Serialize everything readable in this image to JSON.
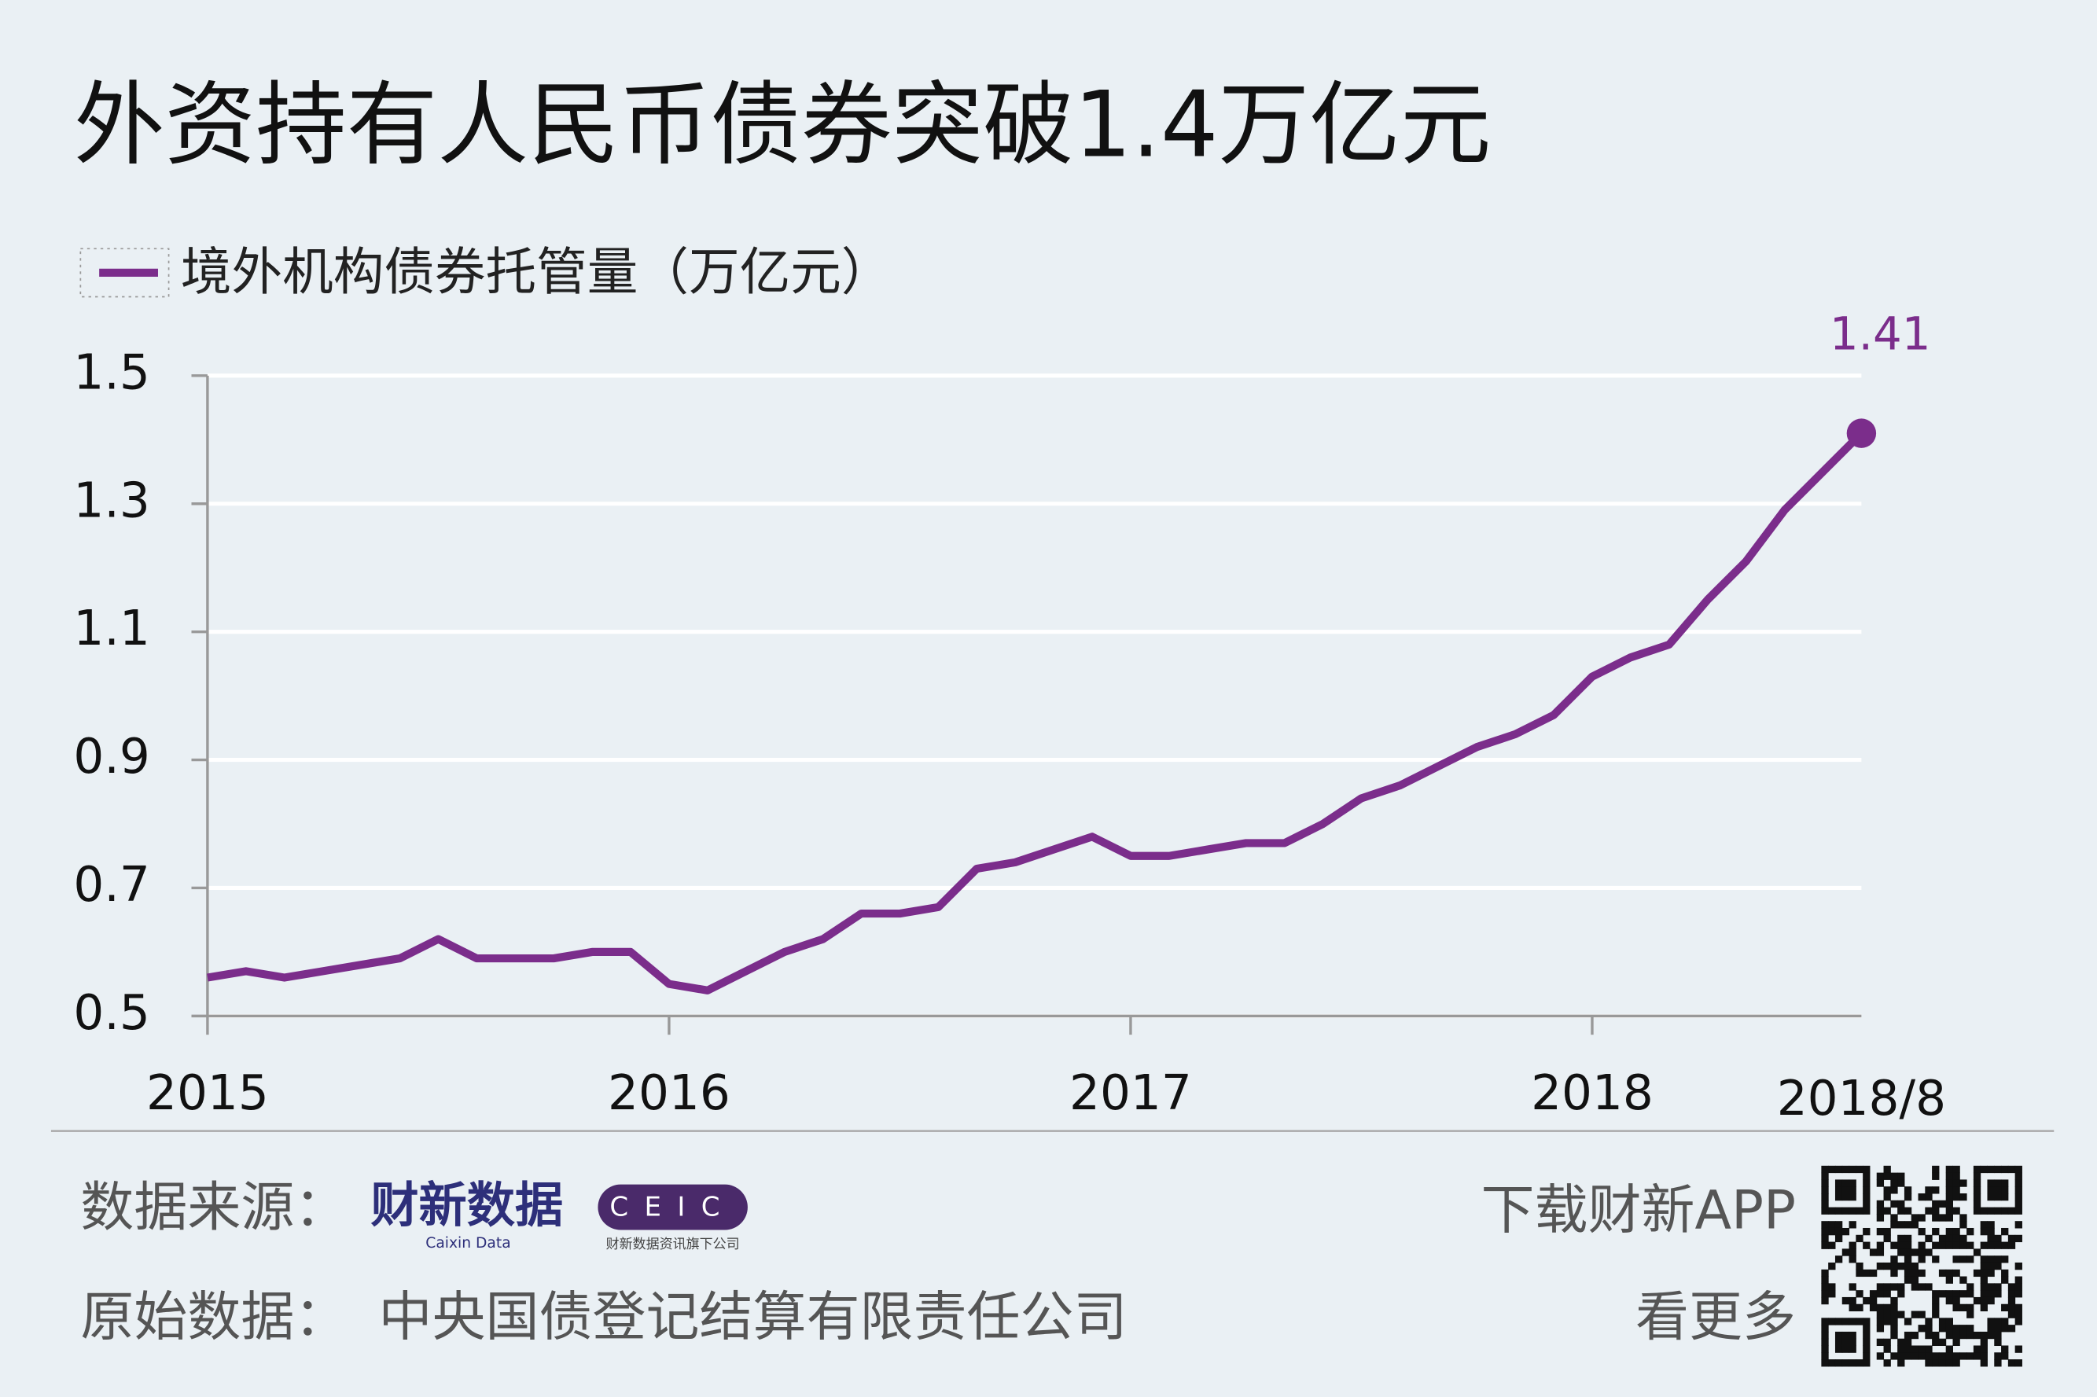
{
  "chart_data": {
    "type": "line",
    "title": "外资持有人民币债券突破1.4万亿元",
    "categories": [
      "2015",
      null,
      null,
      null,
      null,
      null,
      null,
      null,
      null,
      null,
      null,
      null,
      "2016",
      null,
      null,
      null,
      null,
      null,
      null,
      null,
      null,
      null,
      null,
      null,
      "2017",
      null,
      null,
      null,
      null,
      null,
      null,
      null,
      null,
      null,
      null,
      null,
      "2018",
      null,
      null,
      null,
      null,
      null,
      null,
      "2018/8"
    ],
    "series": [
      {
        "name": "境外机构债券托管量（万亿元）",
        "color": "#7b2d8b",
        "values": [
          0.56,
          0.57,
          0.56,
          0.57,
          0.58,
          0.59,
          0.62,
          0.59,
          0.59,
          0.59,
          0.6,
          0.6,
          0.55,
          0.54,
          0.57,
          0.6,
          0.62,
          0.66,
          0.66,
          0.67,
          0.73,
          0.74,
          0.76,
          0.78,
          0.75,
          0.75,
          0.76,
          0.77,
          0.77,
          0.8,
          0.84,
          0.86,
          0.89,
          0.92,
          0.94,
          0.97,
          1.03,
          1.06,
          1.08,
          1.15,
          1.21,
          1.29,
          1.35,
          1.41
        ]
      }
    ],
    "ylim": [
      0.5,
      1.5
    ],
    "yticks": [
      0.5,
      0.7,
      0.9,
      1.1,
      1.3,
      1.5
    ],
    "grid": true
  },
  "footer": {
    "source_label": "数据来源：",
    "logo1": "财新数据",
    "logo1_sub": "Caixin Data",
    "logo2": "CEIC",
    "logo2_sub": "财新数据资讯旗下公司",
    "raw_label": "原始数据：",
    "raw_source": "中央国债登记结算有限责任公司",
    "app1": "下载财新APP",
    "app2": "看更多"
  }
}
